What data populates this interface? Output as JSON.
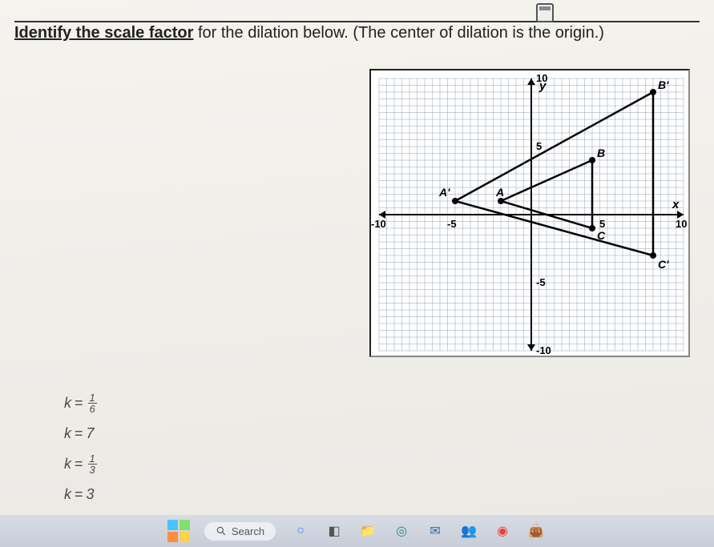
{
  "question": {
    "prefix": "Identify the scale factor",
    "rest": " for the dilation below. (The center of dilation is the origin.)"
  },
  "graph": {
    "xmin": -10,
    "xmax": 10,
    "ymin": -10,
    "ymax": 10,
    "grid_step": 0.5,
    "axis_labels": {
      "x": "x",
      "y": "y"
    },
    "tick_labels": [
      "10",
      "5",
      "-5",
      "-10",
      "-10",
      "-5",
      "5",
      "10"
    ],
    "points": {
      "A": {
        "x": -2,
        "y": 1,
        "label": "A"
      },
      "B": {
        "x": 4,
        "y": 4,
        "label": "B"
      },
      "C": {
        "x": 4,
        "y": -1,
        "label": "C"
      },
      "Ap": {
        "x": -5,
        "y": 1,
        "label": "A'"
      },
      "Bp": {
        "x": 8,
        "y": 9,
        "label": "B'"
      },
      "Cp": {
        "x": 8,
        "y": -3,
        "label": "C'"
      }
    },
    "colors": {
      "grid": "#7a8aa0",
      "axis": "#000000",
      "shape": "#000000",
      "bg": "#ffffff"
    }
  },
  "options": [
    {
      "k": "k",
      "type": "frac",
      "num": "1",
      "den": "6"
    },
    {
      "k": "k",
      "type": "int",
      "value": "7"
    },
    {
      "k": "k",
      "type": "frac",
      "num": "1",
      "den": "3"
    },
    {
      "k": "k",
      "type": "int",
      "value": "3"
    }
  ],
  "taskbar": {
    "search_label": "Search",
    "icons": [
      {
        "name": "cortana-icon",
        "glyph": "○",
        "color": "#3b82f6"
      },
      {
        "name": "widgets-icon",
        "glyph": "◧",
        "color": "#555"
      },
      {
        "name": "explorer-icon",
        "glyph": "📁",
        "color": "#f4b042"
      },
      {
        "name": "edge-icon",
        "glyph": "◎",
        "color": "#2e8b8b"
      },
      {
        "name": "mail-icon",
        "glyph": "✉",
        "color": "#2b6cb0"
      },
      {
        "name": "teams-icon",
        "glyph": "👥",
        "color": "#5b5fc7"
      },
      {
        "name": "chrome-icon",
        "glyph": "◉",
        "color": "#ea4335"
      },
      {
        "name": "bag-icon",
        "glyph": "👜",
        "color": "#c0392b"
      }
    ]
  }
}
